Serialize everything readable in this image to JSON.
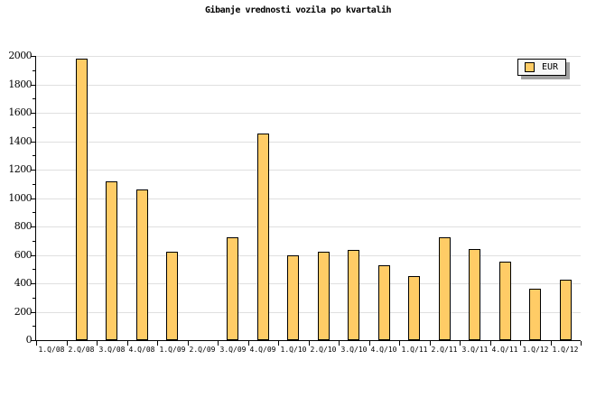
{
  "chart_data": {
    "type": "bar",
    "title": "Gibanje vrednosti vozila po kvartalih",
    "series_name": "EUR",
    "categories": [
      "1.Q/08",
      "2.Q/08",
      "3.Q/08",
      "4.Q/08",
      "1.Q/09",
      "2.Q/09",
      "3.Q/09",
      "4.Q/09",
      "1.Q/10",
      "2.Q/10",
      "3.Q/10",
      "4.Q/10",
      "1.Q/11",
      "2.Q/11",
      "3.Q/11",
      "4.Q/11",
      "1.Q/12",
      "1.Q/12"
    ],
    "values": [
      0,
      1980,
      1120,
      1060,
      625,
      0,
      725,
      1455,
      600,
      620,
      635,
      525,
      450,
      725,
      640,
      555,
      365,
      425
    ],
    "xlabel": "",
    "ylabel": "",
    "ylim": [
      0,
      2000
    ],
    "ytick_major": 200,
    "ytick_minor": 100,
    "grid": "horizontal-major",
    "legend_position": "top-right"
  },
  "colors": {
    "bar_fill": "#FFCC66",
    "bar_border": "#000000",
    "grid": "#E0E0E0",
    "axis": "#000000",
    "background": "#FFFFFF",
    "legend_bg": "#F8F8F8",
    "legend_shadow": "#A0A0A0",
    "text": "#000000"
  }
}
